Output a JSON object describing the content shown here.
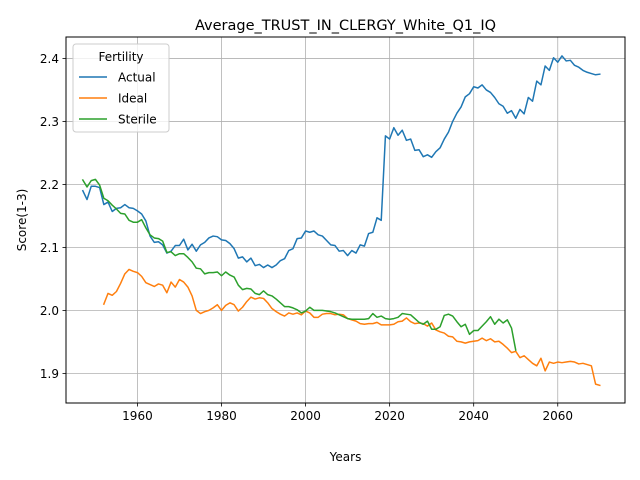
{
  "chart_data": {
    "type": "line",
    "title": "Average_TRUST_IN_CLERGY_White_Q1_IQ",
    "xlabel": "Years",
    "ylabel": "Score(1-3)",
    "xlim": [
      1943,
      2076
    ],
    "ylim": [
      1.853,
      2.434
    ],
    "xticks": [
      1960,
      1980,
      2000,
      2020,
      2040,
      2060
    ],
    "yticks": [
      1.9,
      2.0,
      2.1,
      2.2,
      2.3,
      2.4
    ],
    "grid": true,
    "legend": {
      "title": "Fertility",
      "placement": "top-left"
    },
    "series": [
      {
        "name": "Actual",
        "color": "#1f77b4",
        "x": [
          1947,
          1948,
          1949,
          1950,
          1951,
          1952,
          1953,
          1954,
          1955,
          1956,
          1957,
          1958,
          1959,
          1960,
          1961,
          1962,
          1963,
          1964,
          1965,
          1966,
          1967,
          1968,
          1969,
          1970,
          1971,
          1972,
          1973,
          1974,
          1975,
          1976,
          1977,
          1978,
          1979,
          1980,
          1981,
          1982,
          1983,
          1984,
          1985,
          1986,
          1987,
          1988,
          1989,
          1990,
          1991,
          1992,
          1993,
          1994,
          1995,
          1996,
          1997,
          1998,
          1999,
          2000,
          2001,
          2002,
          2003,
          2004,
          2005,
          2006,
          2007,
          2008,
          2009,
          2010,
          2011,
          2012,
          2013,
          2014,
          2015,
          2016,
          2017,
          2018,
          2019,
          2020,
          2021,
          2022,
          2023,
          2024,
          2025,
          2026,
          2027,
          2028,
          2029,
          2030,
          2031,
          2032,
          2033,
          2034,
          2035,
          2036,
          2037,
          2038,
          2039,
          2040,
          2041,
          2042,
          2043,
          2044,
          2045,
          2046,
          2047,
          2048,
          2049,
          2050,
          2051,
          2052,
          2053,
          2054,
          2055,
          2056,
          2057,
          2058,
          2059,
          2060,
          2061,
          2062,
          2063,
          2064,
          2065,
          2066,
          2067,
          2068,
          2069,
          2070
        ],
        "values": [
          2.19,
          2.176,
          2.197,
          2.197,
          2.195,
          2.168,
          2.172,
          2.157,
          2.162,
          2.163,
          2.168,
          2.163,
          2.162,
          2.158,
          2.153,
          2.142,
          2.118,
          2.108,
          2.109,
          2.104,
          2.091,
          2.094,
          2.103,
          2.103,
          2.113,
          2.096,
          2.105,
          2.094,
          2.104,
          2.108,
          2.115,
          2.118,
          2.117,
          2.112,
          2.111,
          2.106,
          2.098,
          2.083,
          2.085,
          2.077,
          2.083,
          2.071,
          2.073,
          2.068,
          2.072,
          2.068,
          2.072,
          2.079,
          2.082,
          2.095,
          2.098,
          2.114,
          2.115,
          2.126,
          2.124,
          2.126,
          2.12,
          2.118,
          2.111,
          2.104,
          2.103,
          2.094,
          2.095,
          2.087,
          2.095,
          2.091,
          2.104,
          2.102,
          2.122,
          2.124,
          2.147,
          2.143,
          2.277,
          2.272,
          2.29,
          2.278,
          2.286,
          2.27,
          2.272,
          2.254,
          2.255,
          2.244,
          2.247,
          2.243,
          2.252,
          2.258,
          2.272,
          2.283,
          2.3,
          2.313,
          2.323,
          2.339,
          2.344,
          2.355,
          2.353,
          2.358,
          2.35,
          2.346,
          2.338,
          2.328,
          2.324,
          2.313,
          2.317,
          2.305,
          2.319,
          2.312,
          2.338,
          2.332,
          2.364,
          2.358,
          2.388,
          2.381,
          2.401,
          2.394,
          2.404,
          2.396,
          2.397,
          2.389,
          2.386,
          2.381,
          2.378,
          2.376,
          2.374,
          2.375
        ]
      },
      {
        "name": "Ideal",
        "color": "#ff7f0e",
        "x": [
          1952,
          1953,
          1954,
          1955,
          1956,
          1957,
          1958,
          1959,
          1960,
          1961,
          1962,
          1963,
          1964,
          1965,
          1966,
          1967,
          1968,
          1969,
          1970,
          1971,
          1972,
          1973,
          1974,
          1975,
          1976,
          1977,
          1978,
          1979,
          1980,
          1981,
          1982,
          1983,
          1984,
          1985,
          1986,
          1987,
          1988,
          1989,
          1990,
          1991,
          1992,
          1993,
          1994,
          1995,
          1996,
          1997,
          1998,
          1999,
          2000,
          2001,
          2002,
          2003,
          2004,
          2005,
          2006,
          2007,
          2008,
          2009,
          2010,
          2011,
          2012,
          2013,
          2014,
          2015,
          2016,
          2017,
          2018,
          2019,
          2020,
          2021,
          2022,
          2023,
          2024,
          2025,
          2026,
          2027,
          2028,
          2029,
          2030,
          2031,
          2032,
          2033,
          2034,
          2035,
          2036,
          2037,
          2038,
          2039,
          2040,
          2041,
          2042,
          2043,
          2044,
          2045,
          2046,
          2047,
          2048,
          2049,
          2050,
          2051,
          2052,
          2053,
          2054,
          2055,
          2056,
          2057,
          2058,
          2059,
          2060,
          2061,
          2062,
          2063,
          2064,
          2065,
          2066,
          2067,
          2068,
          2069,
          2070
        ],
        "values": [
          2.01,
          2.027,
          2.024,
          2.03,
          2.043,
          2.058,
          2.065,
          2.062,
          2.06,
          2.054,
          2.044,
          2.041,
          2.038,
          2.042,
          2.04,
          2.028,
          2.045,
          2.037,
          2.049,
          2.045,
          2.037,
          2.023,
          2.0,
          1.995,
          1.998,
          2.0,
          2.004,
          2.009,
          2.0,
          2.008,
          2.012,
          2.009,
          1.999,
          2.005,
          2.014,
          2.021,
          2.018,
          2.02,
          2.019,
          2.012,
          2.003,
          1.998,
          1.994,
          1.991,
          1.996,
          1.994,
          1.996,
          1.993,
          1.999,
          1.996,
          1.989,
          1.989,
          1.994,
          1.995,
          1.995,
          1.993,
          1.994,
          1.993,
          1.987,
          1.985,
          1.983,
          1.979,
          1.978,
          1.979,
          1.979,
          1.981,
          1.977,
          1.977,
          1.977,
          1.978,
          1.982,
          1.983,
          1.988,
          1.982,
          1.979,
          1.98,
          1.979,
          1.975,
          1.98,
          1.969,
          1.966,
          1.964,
          1.959,
          1.958,
          1.951,
          1.95,
          1.948,
          1.95,
          1.951,
          1.952,
          1.956,
          1.952,
          1.955,
          1.95,
          1.951,
          1.946,
          1.94,
          1.933,
          1.935,
          1.925,
          1.928,
          1.922,
          1.916,
          1.912,
          1.924,
          1.904,
          1.918,
          1.916,
          1.918,
          1.917,
          1.918,
          1.919,
          1.918,
          1.915,
          1.916,
          1.914,
          1.912,
          1.883,
          1.881
        ]
      },
      {
        "name": "Sterile",
        "color": "#2ca02c",
        "x": [
          1947,
          1948,
          1949,
          1950,
          1951,
          1952,
          1953,
          1954,
          1955,
          1956,
          1957,
          1958,
          1959,
          1960,
          1961,
          1962,
          1963,
          1964,
          1965,
          1966,
          1967,
          1968,
          1969,
          1970,
          1971,
          1972,
          1973,
          1974,
          1975,
          1976,
          1977,
          1978,
          1979,
          1980,
          1981,
          1982,
          1983,
          1984,
          1985,
          1986,
          1987,
          1988,
          1989,
          1990,
          1991,
          1992,
          1993,
          1994,
          1995,
          1996,
          1997,
          1998,
          1999,
          2000,
          2001,
          2002,
          2003,
          2004,
          2005,
          2006,
          2007,
          2008,
          2009,
          2010,
          2011,
          2012,
          2013,
          2014,
          2015,
          2016,
          2017,
          2018,
          2019,
          2020,
          2021,
          2022,
          2023,
          2024,
          2025,
          2026,
          2027,
          2028,
          2029,
          2030,
          2031,
          2032,
          2033,
          2034,
          2035,
          2036,
          2037,
          2038,
          2039,
          2040,
          2041,
          2042,
          2043,
          2044,
          2045,
          2046,
          2047,
          2048,
          2049,
          2050
        ],
        "values": [
          2.207,
          2.196,
          2.206,
          2.208,
          2.199,
          2.178,
          2.174,
          2.167,
          2.161,
          2.154,
          2.153,
          2.143,
          2.14,
          2.14,
          2.144,
          2.131,
          2.12,
          2.115,
          2.114,
          2.11,
          2.092,
          2.093,
          2.087,
          2.09,
          2.09,
          2.084,
          2.077,
          2.067,
          2.066,
          2.058,
          2.06,
          2.06,
          2.061,
          2.055,
          2.061,
          2.056,
          2.053,
          2.04,
          2.033,
          2.035,
          2.034,
          2.027,
          2.025,
          2.031,
          2.025,
          2.023,
          2.018,
          2.012,
          2.006,
          2.006,
          2.004,
          2.001,
          1.996,
          1.999,
          2.005,
          2.0,
          2.0,
          2.0,
          1.999,
          1.998,
          1.996,
          1.993,
          1.99,
          1.987,
          1.986,
          1.986,
          1.986,
          1.986,
          1.987,
          1.995,
          1.989,
          1.991,
          1.987,
          1.986,
          1.987,
          1.989,
          1.995,
          1.994,
          1.993,
          1.987,
          1.981,
          1.978,
          1.983,
          1.97,
          1.97,
          1.974,
          1.992,
          1.994,
          1.991,
          1.982,
          1.974,
          1.978,
          1.962,
          1.968,
          1.968,
          1.975,
          1.982,
          1.99,
          1.978,
          1.986,
          1.98,
          1.985,
          1.972,
          1.937
        ]
      }
    ]
  }
}
